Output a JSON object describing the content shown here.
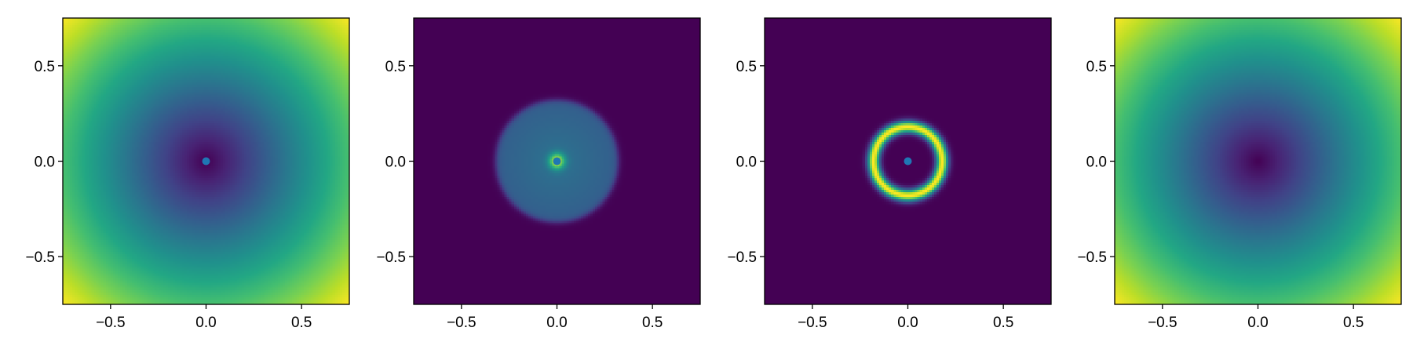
{
  "chart_data": [
    {
      "type": "heatmap",
      "field": "radial_distance",
      "colormap": "viridis",
      "xlim": [
        -0.75,
        0.75
      ],
      "ylim": [
        -0.75,
        0.75
      ],
      "xticks": [
        -0.5,
        0.0,
        0.5
      ],
      "yticks": [
        -0.5,
        0.0,
        0.5
      ],
      "xtick_labels": [
        "−0.5",
        "0.0",
        "0.5"
      ],
      "ytick_labels": [
        "−0.5",
        "0.0",
        "0.5"
      ],
      "marker": {
        "x": 0.0,
        "y": 0.0,
        "color": "#1f77b4"
      },
      "grid": false
    },
    {
      "type": "heatmap",
      "field": "central_blob",
      "colormap": "viridis",
      "xlim": [
        -0.75,
        0.75
      ],
      "ylim": [
        -0.75,
        0.75
      ],
      "xticks": [
        -0.5,
        0.0,
        0.5
      ],
      "yticks": [
        -0.5,
        0.0,
        0.5
      ],
      "xtick_labels": [
        "−0.5",
        "0.0",
        "0.5"
      ],
      "ytick_labels": [
        "−0.5",
        "0.0",
        "0.5"
      ],
      "disk_radius": 0.32,
      "marker": {
        "x": 0.0,
        "y": 0.0,
        "color": "#1f77b4"
      },
      "grid": false
    },
    {
      "type": "heatmap",
      "field": "ring",
      "colormap": "viridis",
      "xlim": [
        -0.75,
        0.75
      ],
      "ylim": [
        -0.75,
        0.75
      ],
      "xticks": [
        -0.5,
        0.0,
        0.5
      ],
      "yticks": [
        -0.5,
        0.0,
        0.5
      ],
      "xtick_labels": [
        "−0.5",
        "0.0",
        "0.5"
      ],
      "ytick_labels": [
        "−0.5",
        "0.0",
        "0.5"
      ],
      "ring_radius": 0.18,
      "marker": {
        "x": 0.0,
        "y": 0.0,
        "color": "#1f77b4"
      },
      "grid": false
    },
    {
      "type": "heatmap",
      "field": "radial_distance",
      "colormap": "viridis",
      "xlim": [
        -0.75,
        0.75
      ],
      "ylim": [
        -0.75,
        0.75
      ],
      "xticks": [
        -0.5,
        0.0,
        0.5
      ],
      "yticks": [
        -0.5,
        0.0,
        0.5
      ],
      "xtick_labels": [
        "−0.5",
        "0.0",
        "0.5"
      ],
      "ytick_labels": [
        "−0.5",
        "0.0",
        "0.5"
      ],
      "grid": false
    }
  ]
}
